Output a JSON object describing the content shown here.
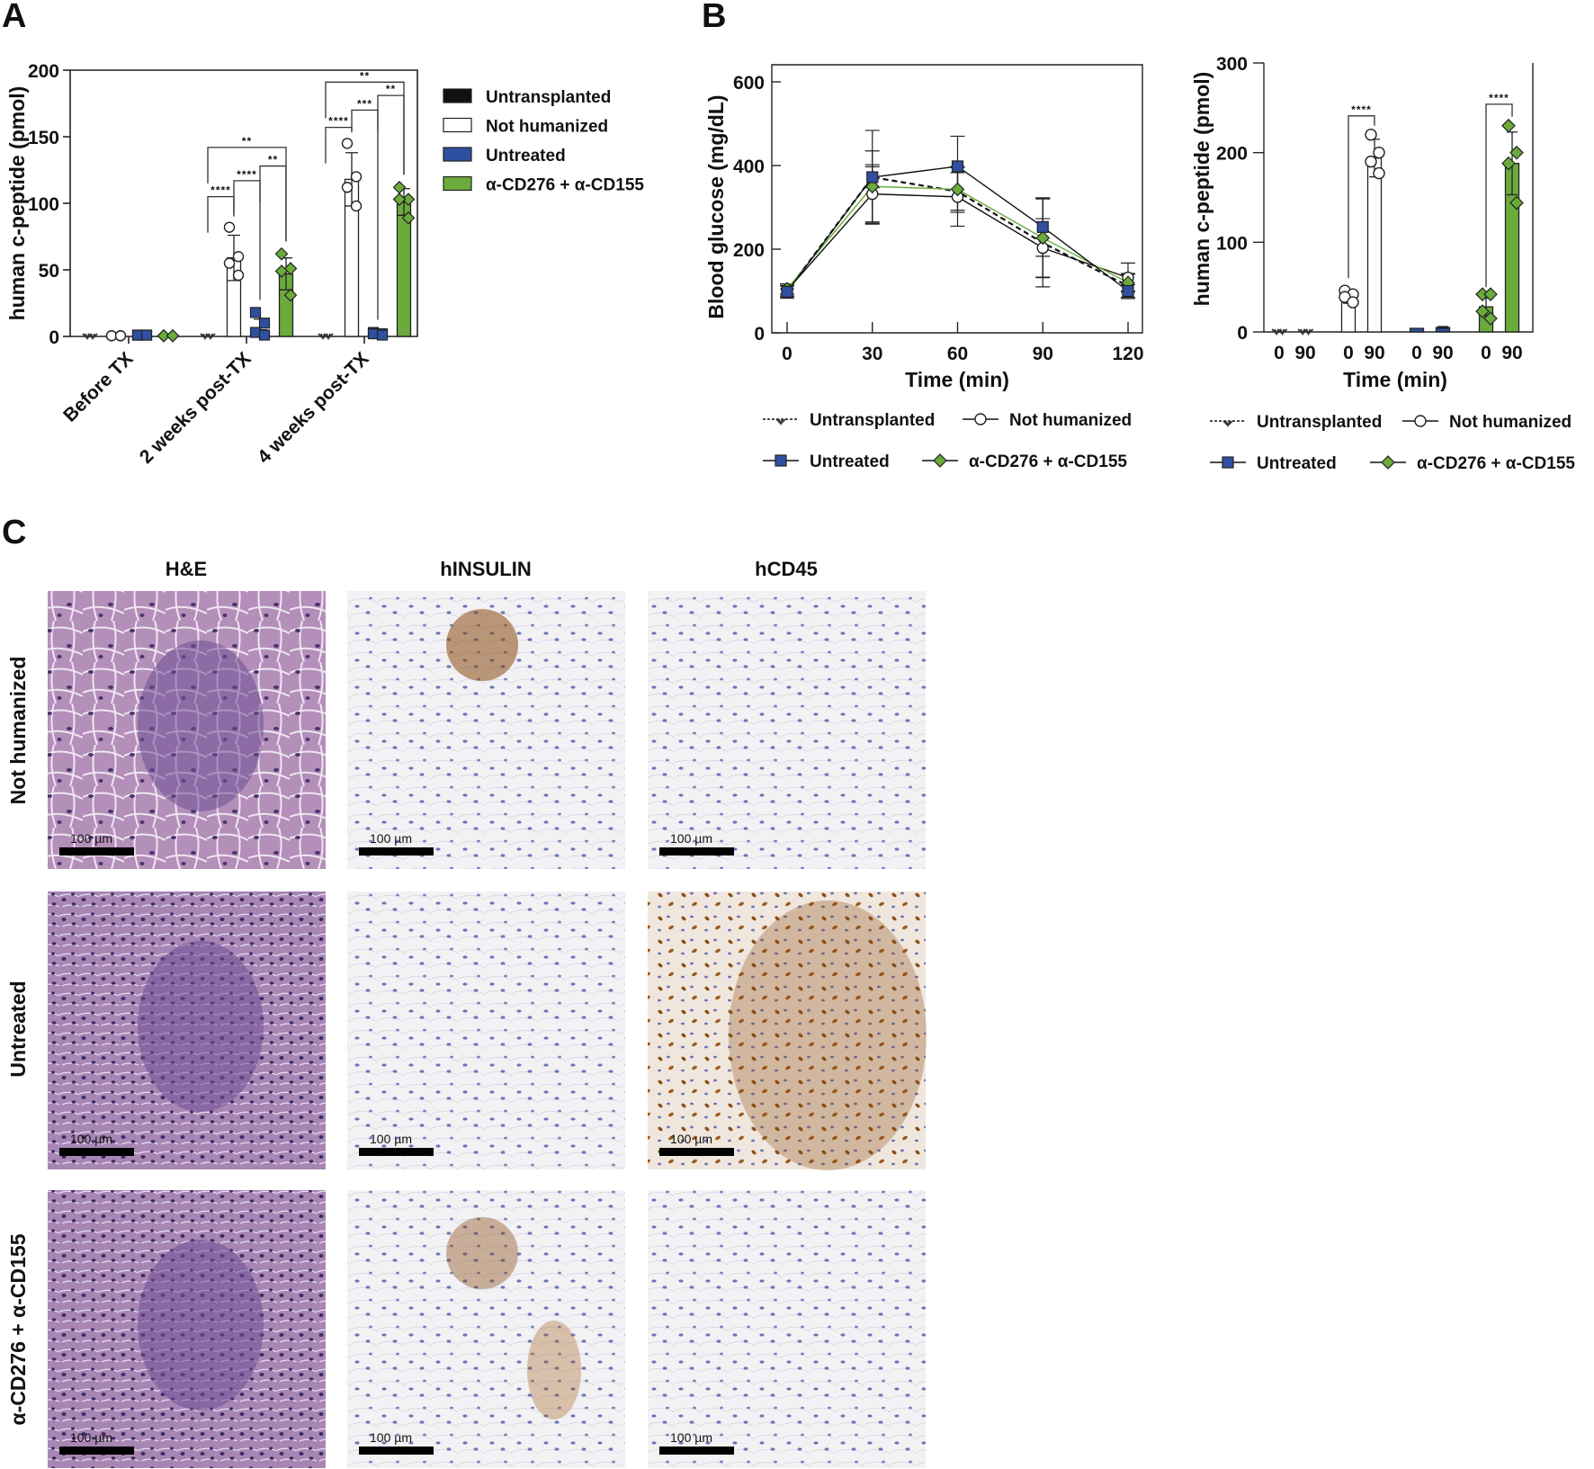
{
  "figure": {
    "panel_letters": {
      "A": "A",
      "B": "B",
      "C": "C"
    },
    "colors": {
      "untransplanted": "#111111",
      "not_humanized": "#ffffff",
      "untreated": "#2f4fa0",
      "treated": "#6aab3c",
      "axis": "#222222"
    }
  },
  "legend_A": {
    "items": [
      {
        "label": "Untransplanted",
        "swatch": "#111111"
      },
      {
        "label": "Not humanized",
        "swatch": "#ffffff"
      },
      {
        "label": "Untreated",
        "swatch": "#2f4fa0"
      },
      {
        "label": "α-CD276 + α-CD155",
        "swatch": "#6aab3c"
      }
    ]
  },
  "legend_B": {
    "items": [
      {
        "label": "Untransplanted",
        "marker": "x",
        "line": "dashed"
      },
      {
        "label": "Not humanized",
        "marker": "circle",
        "line": "solid"
      },
      {
        "label": "Untreated",
        "marker": "square",
        "line": "solid"
      },
      {
        "label": "α-CD276 + α-CD155",
        "marker": "diamond",
        "line": "solid"
      }
    ]
  },
  "chart_data": [
    {
      "id": "A",
      "type": "bar",
      "title": "",
      "xlabel": "",
      "ylabel": "human c-peptide (pmol)",
      "ylim": [
        0,
        200
      ],
      "yticks": [
        0,
        50,
        100,
        150,
        200
      ],
      "categories": [
        "Before TX",
        "2 weeks post-TX",
        "4 weeks post-TX"
      ],
      "series": [
        {
          "name": "Untransplanted",
          "values": [
            0,
            0,
            0
          ],
          "err": [
            0,
            0,
            0
          ],
          "points": [
            [
              0,
              0,
              0,
              0
            ],
            [
              0,
              0,
              0,
              0
            ],
            [
              0,
              0,
              0,
              0
            ]
          ]
        },
        {
          "name": "Not humanized",
          "values": [
            0.5,
            59,
            118
          ],
          "err": [
            0,
            17,
            20
          ],
          "points": [
            [
              0.5,
              0.5,
              0.5,
              0.5
            ],
            [
              82,
              60,
              55,
              46
            ],
            [
              145,
              120,
              112,
              98
            ]
          ]
        },
        {
          "name": "Untreated",
          "values": [
            1,
            5,
            2
          ],
          "err": [
            0,
            8,
            1
          ],
          "points": [
            [
              1,
              1,
              1,
              1
            ],
            [
              18,
              10,
              3,
              1
            ],
            [
              3,
              2,
              2,
              1
            ]
          ]
        },
        {
          "name": "α-CD276 + α-CD155",
          "values": [
            0.5,
            47,
            101
          ],
          "err": [
            0,
            12,
            10
          ],
          "points": [
            [
              0.5,
              0.5,
              0.5,
              0.5
            ],
            [
              62,
              51,
              49,
              31
            ],
            [
              112,
              103,
              103,
              89
            ]
          ]
        }
      ],
      "significance": [
        {
          "group": 1,
          "from": 0,
          "to": 1,
          "label": "****",
          "y": 105
        },
        {
          "group": 1,
          "from": 1,
          "to": 2,
          "label": "****",
          "y": 117
        },
        {
          "group": 1,
          "from": 2,
          "to": 3,
          "label": "**",
          "y": 128
        },
        {
          "group": 1,
          "from": 0,
          "to": 3,
          "label": "**",
          "y": 142
        },
        {
          "group": 2,
          "from": 0,
          "to": 1,
          "label": "****",
          "y": 157
        },
        {
          "group": 2,
          "from": 1,
          "to": 2,
          "label": "***",
          "y": 170
        },
        {
          "group": 2,
          "from": 2,
          "to": 3,
          "label": "**",
          "y": 181
        },
        {
          "group": 2,
          "from": 0,
          "to": 3,
          "label": "**",
          "y": 191
        }
      ],
      "legend_position": "right",
      "grid": false
    },
    {
      "id": "B-glucose",
      "type": "line",
      "xlabel": "Time (min)",
      "ylabel": "Blood glucose (mg/dL)",
      "x": [
        0,
        30,
        60,
        90,
        120
      ],
      "xlim": [
        -5,
        125
      ],
      "ylim": [
        0,
        640
      ],
      "yticks": [
        0,
        200,
        400,
        600
      ],
      "series": [
        {
          "name": "Untransplanted",
          "values": [
            100,
            372,
            338,
            215,
            112
          ],
          "err": [
            12,
            25,
            45,
            105,
            30
          ]
        },
        {
          "name": "Not humanized",
          "values": [
            102,
            332,
            325,
            203,
            132
          ],
          "err": [
            15,
            70,
            70,
            70,
            35
          ]
        },
        {
          "name": "Untreated",
          "values": [
            98,
            372,
            398,
            253,
            100
          ],
          "err": [
            15,
            112,
            72,
            70,
            15
          ]
        },
        {
          "name": "α-CD276 + α-CD155",
          "values": [
            105,
            350,
            343,
            227,
            120
          ],
          "err": [
            12,
            85,
            55,
            95,
            20
          ]
        }
      ],
      "legend_position": "bottom",
      "grid": false
    },
    {
      "id": "B-cpeptide",
      "type": "bar",
      "xlabel": "Time (min)",
      "ylabel": "human c-peptide (pmol)",
      "ylim": [
        0,
        300
      ],
      "yticks": [
        0,
        100,
        200,
        300
      ],
      "categories": [
        "0",
        "90",
        "0",
        "90",
        "0",
        "90",
        "0",
        "90"
      ],
      "groups": [
        "Untransplanted",
        "Not humanized",
        "Untreated",
        "α-CD276 + α-CD155"
      ],
      "values": [
        0,
        0,
        38,
        194,
        4,
        5,
        28,
        188
      ],
      "err": [
        0,
        0,
        6,
        21,
        0,
        1,
        10,
        35
      ],
      "points": [
        [
          0,
          0,
          0,
          0
        ],
        [
          0,
          0,
          0,
          0
        ],
        [
          46,
          42,
          39,
          33
        ],
        [
          220,
          200,
          190,
          177
        ],
        [
          4,
          4,
          4,
          4
        ],
        [
          5,
          5,
          5,
          5
        ],
        [
          42,
          42,
          23,
          15
        ],
        [
          230,
          200,
          188,
          144
        ]
      ],
      "significance": [
        {
          "from": 2,
          "to": 3,
          "label": "****",
          "y": 241
        },
        {
          "from": 6,
          "to": 7,
          "label": "****",
          "y": 254
        }
      ],
      "legend_position": "bottom",
      "grid": false
    }
  ],
  "panel_C": {
    "columns": [
      "H&E",
      "hINSULIN",
      "hCD45"
    ],
    "rows": [
      "Not humanized",
      "Untreated",
      "α-CD276 + α-CD155"
    ],
    "scale_bar_label": "100 µm"
  }
}
